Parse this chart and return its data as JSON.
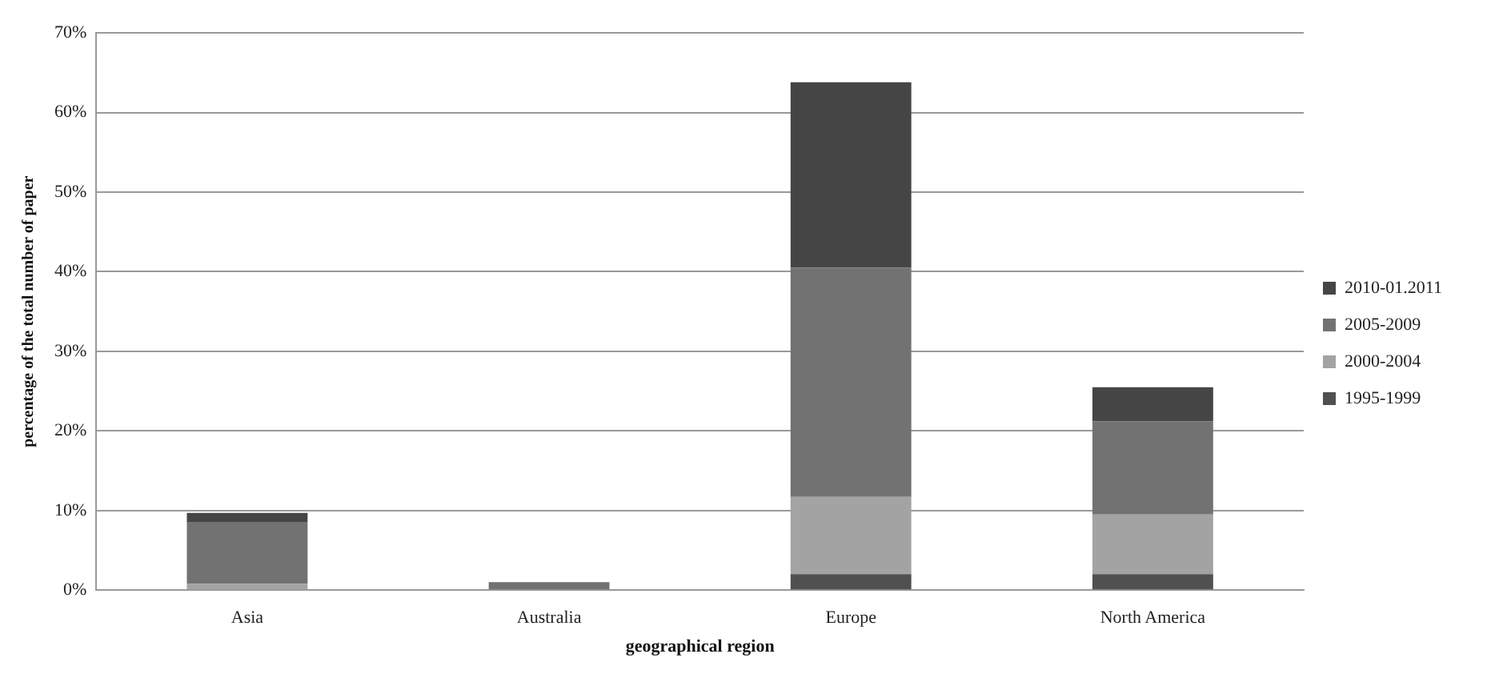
{
  "chart_data": {
    "type": "bar",
    "xlabel": "geographical region",
    "ylabel": "percentage of the total number of paper",
    "categories": [
      "Asia",
      "Australia",
      "Europe",
      "North America"
    ],
    "series": [
      {
        "name": "1995-1999",
        "color": "#505050",
        "values": [
          0,
          0,
          2.0,
          2.0
        ]
      },
      {
        "name": "2000-2004",
        "color": "#a3a3a3",
        "values": [
          0.8,
          0,
          9.7,
          7.5
        ]
      },
      {
        "name": "2005-2009",
        "color": "#727272",
        "values": [
          7.7,
          1.0,
          28.8,
          11.7
        ]
      },
      {
        "name": "2010-01.2011",
        "color": "#454545",
        "values": [
          1.2,
          0,
          23.3,
          4.3
        ]
      }
    ],
    "stacked": true,
    "ylim": [
      0,
      70
    ],
    "yticks": [
      {
        "value": 0,
        "label": "0%"
      },
      {
        "value": 10,
        "label": "10%"
      },
      {
        "value": 20,
        "label": "20%"
      },
      {
        "value": 30,
        "label": "30%"
      },
      {
        "value": 40,
        "label": "40%"
      },
      {
        "value": 50,
        "label": "50%"
      },
      {
        "value": 60,
        "label": "60%"
      },
      {
        "value": 70,
        "label": "70%"
      }
    ],
    "grid": "y",
    "legend": "right"
  }
}
